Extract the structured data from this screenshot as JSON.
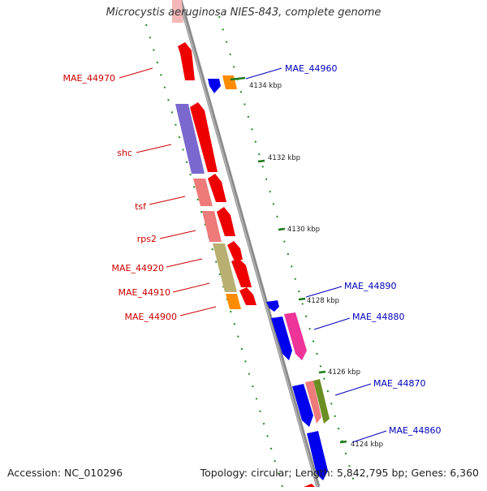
{
  "title": "Microcystis aeruginosa NIES-843, complete genome",
  "footer": {
    "accession": "Accession: NC_010296",
    "summary": "Topology: circular; Length: 5,842,795 bp; Genes: 6,360"
  },
  "ticks": [
    "4134 kbp",
    "4132 kbp",
    "4130 kbp",
    "4128 kbp",
    "4126 kbp",
    "4124 kbp"
  ],
  "gene_labels": {
    "left": [
      "MAE_44970",
      "shc",
      "tsf",
      "rps2",
      "MAE_44920",
      "MAE_44910",
      "MAE_44900"
    ],
    "right": [
      "MAE_44960",
      "MAE_44890",
      "MAE_44880",
      "MAE_44870",
      "MAE_44860"
    ]
  },
  "colors": {
    "forward_label": "#cc0000",
    "reverse_label": "#0000bb",
    "backbone": "#8a8a8a",
    "tick": "#1a7a1a",
    "forward_cds": "#ee0000",
    "reverse_cds": "#0000ee",
    "orange": "#ff8c00",
    "purple": "#7b68cf",
    "pink": "#ee7a7a",
    "olive": "#b8b070",
    "magenta": "#ee3399",
    "green": "#6b8e23"
  }
}
